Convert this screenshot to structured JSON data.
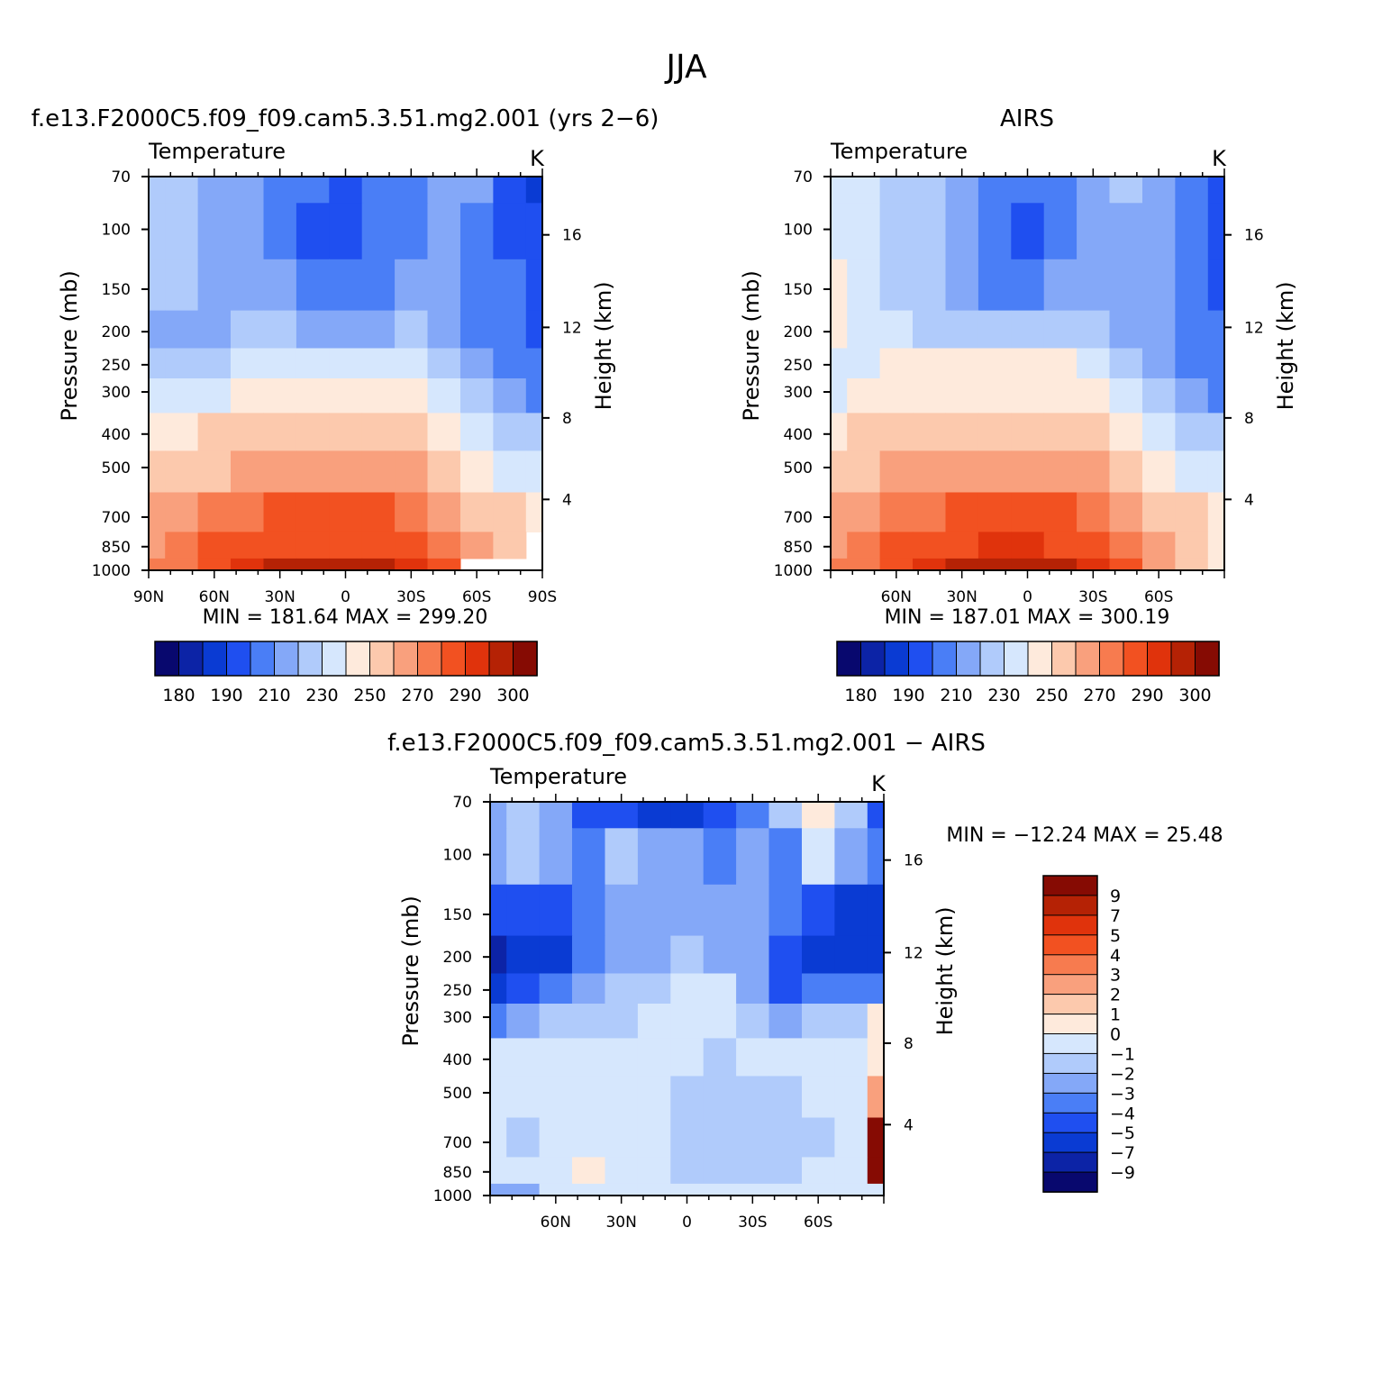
{
  "figure": {
    "title": "JJA"
  },
  "contour_colors": [
    "#08086e",
    "#0c23a6",
    "#0a3bd3",
    "#1f4ff0",
    "#4a7ef6",
    "#84a8f8",
    "#b0cbfb",
    "#d6e7fd",
    "#feeadc",
    "#fcc9ad",
    "#f9a07d",
    "#f77b4f",
    "#f25121",
    "#e0330c",
    "#b52205",
    "#860b03"
  ],
  "panels": [
    {
      "key": "model",
      "title": "f.e13.F2000C5.f09_f09.cam5.3.51.mg2.001 (yrs 2−6)",
      "variable": "Temperature",
      "units": "K",
      "ylabel": "Pressure (mb)",
      "ylabel_right": "Height (km)",
      "pressure_ticks": [
        "70",
        "100",
        "150",
        "200",
        "250",
        "300",
        "400",
        "500",
        "700",
        "850",
        "1000"
      ],
      "height_ticks": [
        "16",
        "12",
        "8",
        "4"
      ],
      "lat_ticks": [
        "90N",
        "60N",
        "30N",
        "0",
        "30S",
        "60S",
        "90S"
      ],
      "stats": "MIN = 181.64   MAX = 299.20"
    },
    {
      "key": "obs",
      "title": "AIRS",
      "variable": "Temperature",
      "units": "K",
      "ylabel": "Pressure (mb)",
      "ylabel_right": "Height (km)",
      "pressure_ticks": [
        "70",
        "100",
        "150",
        "200",
        "250",
        "300",
        "400",
        "500",
        "700",
        "850",
        "1000"
      ],
      "height_ticks": [
        "16",
        "12",
        "8",
        "4"
      ],
      "lat_ticks": [
        "60N",
        "30N",
        "0",
        "30S",
        "60S"
      ],
      "stats": "MIN = 187.01   MAX = 300.19"
    },
    {
      "key": "diff",
      "title": "f.e13.F2000C5.f09_f09.cam5.3.51.mg2.001 − AIRS",
      "variable": "Temperature",
      "units": "K",
      "ylabel": "Pressure (mb)",
      "ylabel_right": "Height (km)",
      "pressure_ticks": [
        "70",
        "100",
        "150",
        "200",
        "250",
        "300",
        "400",
        "500",
        "700",
        "850",
        "1000"
      ],
      "height_ticks": [
        "16",
        "12",
        "8",
        "4"
      ],
      "lat_ticks": [
        "60N",
        "30N",
        "0",
        "30S",
        "60S"
      ],
      "stats": "MIN = −12.24   MAX =   25.48"
    }
  ],
  "colorbars": {
    "abs_labels": [
      "180",
      "190",
      "210",
      "230",
      "250",
      "270",
      "290",
      "300"
    ],
    "diff_labels": [
      "9",
      "7",
      "5",
      "4",
      "3",
      "2",
      "1",
      "0",
      "−1",
      "−2",
      "−3",
      "−4",
      "−5",
      "−7",
      "−9"
    ]
  },
  "chart_data": [
    {
      "type": "heatmap",
      "title": "f.e13.F2000C5.f09_f09.cam5.3.51.mg2.001 (yrs 2−6)",
      "variable": "Temperature",
      "units": "K",
      "xlabel": "",
      "ylabel": "Pressure (mb)",
      "y2label": "Height (km)",
      "x": [
        90,
        75,
        60,
        45,
        30,
        15,
        0,
        -15,
        -30,
        -45,
        -60,
        -75,
        -90
      ],
      "y": [
        70,
        100,
        150,
        200,
        250,
        300,
        400,
        500,
        700,
        850,
        1000
      ],
      "z": [
        [
          226,
          226,
          219,
          214,
          208,
          200,
          199,
          200,
          208,
          214,
          210,
          199,
          189
        ],
        [
          226,
          225,
          219,
          214,
          205,
          199,
          199,
          200,
          205,
          210,
          206,
          198,
          191
        ],
        [
          222,
          222,
          219,
          216,
          212,
          205,
          205,
          207,
          213,
          213,
          207,
          200,
          195
        ],
        [
          216,
          218,
          219,
          220,
          220,
          219,
          219,
          219,
          220,
          214,
          207,
          200,
          196
        ],
        [
          222,
          224,
          228,
          230,
          232,
          232,
          232,
          232,
          230,
          222,
          211,
          204,
          200
        ],
        [
          230,
          232,
          236,
          240,
          243,
          244,
          244,
          243,
          240,
          230,
          220,
          210,
          205
        ],
        [
          244,
          246,
          251,
          255,
          258,
          259,
          259,
          258,
          255,
          244,
          234,
          226,
          220
        ],
        [
          252,
          254,
          259,
          263,
          266,
          267,
          267,
          266,
          263,
          252,
          243,
          236,
          232
        ],
        [
          262,
          266,
          272,
          277,
          280,
          281,
          281,
          280,
          277,
          266,
          256,
          250,
          248
        ],
        [
          268,
          272,
          280,
          285,
          288,
          289,
          289,
          288,
          285,
          272,
          262,
          256,
          null
        ],
        [
          274,
          277,
          284,
          290,
          295,
          297,
          298,
          297,
          293,
          280,
          null,
          null,
          null
        ]
      ],
      "levels": [
        180,
        185,
        190,
        200,
        210,
        220,
        230,
        240,
        250,
        260,
        270,
        280,
        290,
        295,
        300
      ],
      "stats": {
        "min": 181.64,
        "max": 299.2
      }
    },
    {
      "type": "heatmap",
      "title": "AIRS",
      "variable": "Temperature",
      "units": "K",
      "xlabel": "",
      "ylabel": "Pressure (mb)",
      "y2label": "Height (km)",
      "x": [
        90,
        75,
        60,
        45,
        30,
        15,
        0,
        -15,
        -30,
        -45,
        -60,
        -75,
        -90
      ],
      "y": [
        70,
        100,
        150,
        200,
        250,
        300,
        400,
        500,
        700,
        850,
        1000
      ],
      "z": [
        [
          236,
          232,
          226,
          221,
          215,
          205,
          205,
          206,
          214,
          220,
          214,
          206,
          195
        ],
        [
          238,
          232,
          226,
          221,
          212,
          200,
          199,
          202,
          210,
          215,
          211,
          204,
          197
        ],
        [
          242,
          234,
          228,
          222,
          214,
          208,
          207,
          210,
          215,
          215,
          210,
          203,
          198
        ],
        [
          242,
          236,
          230,
          228,
          224,
          222,
          222,
          222,
          223,
          218,
          210,
          204,
          200
        ],
        [
          236,
          238,
          240,
          240,
          240,
          240,
          240,
          240,
          238,
          228,
          218,
          208,
          204
        ],
        [
          236,
          240,
          242,
          244,
          245,
          246,
          246,
          245,
          243,
          234,
          222,
          212,
          207
        ],
        [
          246,
          250,
          253,
          256,
          258,
          259,
          259,
          258,
          256,
          246,
          236,
          228,
          222
        ],
        [
          254,
          258,
          262,
          265,
          267,
          268,
          268,
          267,
          265,
          255,
          245,
          238,
          234
        ],
        [
          263,
          268,
          274,
          278,
          281,
          282,
          282,
          281,
          278,
          267,
          256,
          250,
          246
        ],
        [
          268,
          273,
          281,
          286,
          289,
          290,
          290,
          289,
          286,
          273,
          262,
          252,
          240
        ],
        [
          273,
          277,
          285,
          292,
          296,
          298,
          298,
          297,
          293,
          281,
          268,
          255,
          245
        ]
      ],
      "levels": [
        180,
        185,
        190,
        200,
        210,
        220,
        230,
        240,
        250,
        260,
        270,
        280,
        290,
        295,
        300
      ],
      "stats": {
        "min": 187.01,
        "max": 300.19
      }
    },
    {
      "type": "heatmap",
      "title": "f.e13.F2000C5.f09_f09.cam5.3.51.mg2.001 − AIRS",
      "variable": "Temperature",
      "units": "K",
      "xlabel": "",
      "ylabel": "Pressure (mb)",
      "y2label": "Height (km)",
      "x": [
        90,
        75,
        60,
        45,
        30,
        15,
        0,
        -15,
        -30,
        -45,
        -60,
        -75,
        -90
      ],
      "y": [
        70,
        100,
        150,
        200,
        250,
        300,
        400,
        500,
        700,
        850,
        1000
      ],
      "z": [
        [
          -2.5,
          -1.5,
          -2.5,
          -4.5,
          -4.5,
          -5.5,
          -5.5,
          -4.5,
          -3.5,
          -1.5,
          0.5,
          -1.5,
          -4.5
        ],
        [
          -2.5,
          -1.5,
          -2.5,
          -3.5,
          -1.5,
          -2.5,
          -2.5,
          -3.5,
          -2.5,
          -3.5,
          -0.5,
          -2.5,
          -3.5
        ],
        [
          -4.5,
          -4.5,
          -4.5,
          -3.5,
          -2.5,
          -2.5,
          -2.5,
          -2.5,
          -2.5,
          -3.5,
          -4.5,
          -5.5,
          -6
        ],
        [
          -8,
          -6,
          -5.5,
          -3.5,
          -2.5,
          -2.5,
          -1.5,
          -2.5,
          -2.5,
          -4.5,
          -6,
          -5.5,
          -5.5
        ],
        [
          -5.5,
          -4.5,
          -3.5,
          -2.5,
          -1.5,
          -1.5,
          -0.5,
          -0.5,
          -2.5,
          -4.5,
          -3.5,
          -3.5,
          -3.5
        ],
        [
          -3.5,
          -2.5,
          -1.5,
          -1.5,
          -1.5,
          -0.5,
          -0.5,
          -0.5,
          -1.5,
          -2.5,
          -1.5,
          -1.5,
          0.5
        ],
        [
          -0.5,
          -0.5,
          -0.5,
          -0.5,
          -0.5,
          -0.5,
          -0.5,
          -1.5,
          -0.5,
          -0.5,
          -0.5,
          -0.5,
          0.5
        ],
        [
          -0.5,
          -0.5,
          -0.5,
          -0.5,
          -0.5,
          -0.5,
          -1.5,
          -1.5,
          -1.5,
          -1.5,
          -0.5,
          -0.5,
          2.5
        ],
        [
          -0.5,
          -1.5,
          -0.5,
          -0.5,
          -0.5,
          -0.5,
          -1.5,
          -1.5,
          -1.5,
          -1.5,
          -1.5,
          -0.5,
          9.5
        ],
        [
          -0.5,
          -0.5,
          -0.5,
          0.5,
          -0.5,
          -0.5,
          -1.5,
          -1.5,
          -1.5,
          -1.5,
          -0.5,
          -0.5,
          9.5
        ],
        [
          -2.5,
          -2.5,
          -0.5,
          -0.5,
          -0.5,
          -0.5,
          -0.5,
          -0.5,
          -0.5,
          -0.5,
          -0.5,
          -0.5,
          -0.5
        ]
      ],
      "levels": [
        -9,
        -7,
        -5,
        -4,
        -3,
        -2,
        -1,
        0,
        1,
        2,
        3,
        4,
        5,
        7,
        9
      ],
      "stats": {
        "min": -12.24,
        "max": 25.48
      }
    }
  ]
}
